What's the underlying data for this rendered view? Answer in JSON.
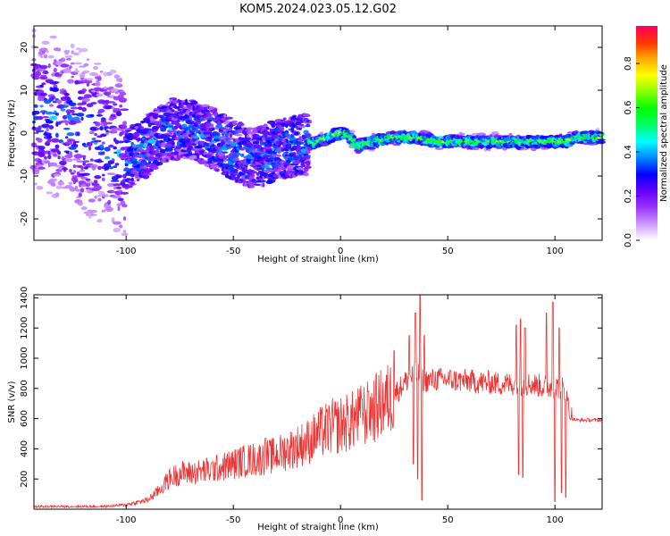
{
  "title": "KOM5.2024.023.05.12.G02",
  "chart_data": [
    {
      "type": "heatmap",
      "xlabel": "Height of straight line (km)",
      "ylabel": "Frequency (Hz)",
      "xlim": [
        -143,
        122
      ],
      "ylim": [
        -25,
        25
      ],
      "xticks": [
        -100,
        -50,
        0,
        50,
        100
      ],
      "yticks": [
        -20,
        -10,
        0,
        10,
        20
      ],
      "colorbar": {
        "label": "Normalized spectral amplitude",
        "range": [
          0,
          0.97
        ],
        "ticks": [
          0.0,
          0.2,
          0.4,
          0.6,
          0.8
        ],
        "colors": [
          "#ffffff",
          "#cc99ff",
          "#9933ff",
          "#6600ff",
          "#0000ff",
          "#0088ff",
          "#00ffff",
          "#00ff66",
          "#00ff00",
          "#88ff00",
          "#ffff00",
          "#ffaa00",
          "#ff3300",
          "#ff0066"
        ]
      },
      "ridge": {
        "x": [
          -143,
          -120,
          -100,
          -90,
          -80,
          -70,
          -60,
          -50,
          -40,
          -30,
          -20,
          -10,
          -5,
          0,
          3,
          8,
          15,
          25,
          35,
          45,
          55,
          65,
          75,
          85,
          95,
          105,
          110,
          115,
          122
        ],
        "y": [
          6,
          0,
          -6,
          -3,
          1,
          1,
          -1,
          -4,
          -6,
          -4,
          -3,
          -2,
          -1,
          0,
          0,
          -3,
          -2,
          -1,
          -1,
          -2,
          -2,
          -2,
          -2,
          -2,
          -2,
          -2,
          -1,
          -1,
          -1
        ]
      }
    },
    {
      "type": "line",
      "xlabel": "Height of straight line (km)",
      "ylabel": "SNR (v/v)",
      "xlim": [
        -143,
        122
      ],
      "ylim": [
        0,
        1420
      ],
      "xticks": [
        -100,
        -50,
        0,
        50,
        100
      ],
      "yticks": [
        200,
        400,
        600,
        800,
        1000,
        1200,
        1400
      ],
      "color": "#ee3333",
      "envelope": {
        "x": [
          -143,
          -110,
          -100,
          -90,
          -85,
          -80,
          -75,
          -70,
          -60,
          -50,
          -45,
          -40,
          -35,
          -30,
          -25,
          -20,
          -15,
          -10,
          -5,
          0,
          5,
          10,
          15,
          20,
          25,
          30,
          33,
          36,
          38,
          40,
          45,
          50,
          55,
          60,
          65,
          70,
          75,
          80,
          84,
          88,
          92,
          96,
          100,
          104,
          108,
          110,
          115,
          122
        ],
        "y": [
          18,
          18,
          30,
          60,
          120,
          200,
          240,
          240,
          260,
          300,
          320,
          330,
          340,
          360,
          390,
          420,
          450,
          500,
          540,
          560,
          580,
          620,
          660,
          700,
          760,
          840,
          880,
          900,
          860,
          850,
          860,
          860,
          850,
          850,
          840,
          840,
          830,
          830,
          820,
          830,
          820,
          810,
          810,
          800,
          600,
          590,
          590,
          590
        ]
      },
      "spikes": [
        {
          "x": 32,
          "y": 1150
        },
        {
          "x": 35,
          "y": 1300
        },
        {
          "x": 37,
          "y": 1420
        },
        {
          "x": 39,
          "y": 1150
        },
        {
          "x": 36,
          "y": 200
        },
        {
          "x": 38,
          "y": 60
        },
        {
          "x": 34,
          "y": 300
        },
        {
          "x": 82,
          "y": 1220
        },
        {
          "x": 84,
          "y": 1260
        },
        {
          "x": 86,
          "y": 1200
        },
        {
          "x": 83,
          "y": 230
        },
        {
          "x": 85,
          "y": 210
        },
        {
          "x": 96,
          "y": 1300
        },
        {
          "x": 99,
          "y": 1370
        },
        {
          "x": 102,
          "y": 1200
        },
        {
          "x": 100,
          "y": 50
        },
        {
          "x": 103,
          "y": 110
        },
        {
          "x": 105,
          "y": 80
        },
        {
          "x": 107,
          "y": 600
        },
        {
          "x": -35,
          "y": 470
        },
        {
          "x": -5,
          "y": 600
        },
        {
          "x": 10,
          "y": 730
        },
        {
          "x": 13,
          "y": 780
        },
        {
          "x": 25,
          "y": 1050
        }
      ]
    }
  ]
}
